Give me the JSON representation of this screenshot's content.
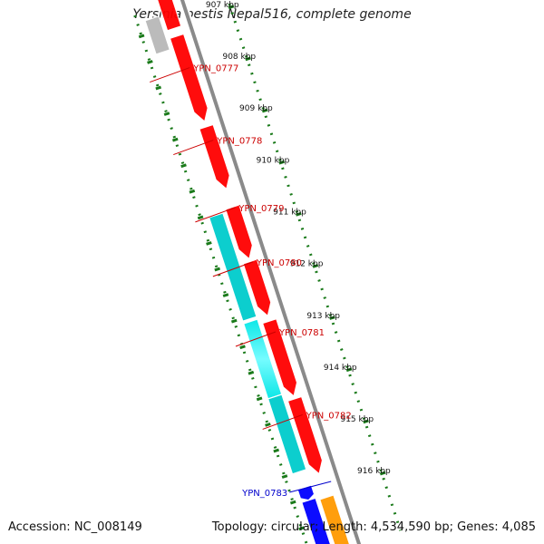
{
  "header": {
    "title": "Yersinia pestis Nepal516, complete genome"
  },
  "footer": {
    "accession": "Accession: NC_008149",
    "summary": "Topology: circular; Length: 4,534,590 bp; Genes: 4,085"
  },
  "colors": {
    "backbone": "#8a8a8a",
    "scale": "#1a7a1a",
    "gene_red": "#ff0000",
    "gene_cyan": "#00cccc",
    "gene_gray": "#b8b8b8",
    "gene_blue": "#0000ff",
    "gene_orange": "#ff9900",
    "label_red": "#cc0000",
    "label_blue": "#0000cc"
  },
  "scale": {
    "unit": "kbp",
    "start_kbp": 906.6,
    "end_kbp": 917.1,
    "ticks": [
      {
        "value": 907,
        "label": "907 kbp"
      },
      {
        "value": 908,
        "label": "908 kbp"
      },
      {
        "value": 909,
        "label": "909 kbp"
      },
      {
        "value": 910,
        "label": "910 kbp"
      },
      {
        "value": 911,
        "label": "911 kbp"
      },
      {
        "value": 912,
        "label": "912 kbp"
      },
      {
        "value": 913,
        "label": "913 kbp"
      },
      {
        "value": 914,
        "label": "914 kbp"
      },
      {
        "value": 915,
        "label": "915 kbp"
      },
      {
        "value": 916,
        "label": "916 kbp"
      }
    ]
  },
  "genes": [
    {
      "lane": "f1",
      "start": 906.45,
      "end": 907.05,
      "color": "gene_red",
      "arrow": false
    },
    {
      "lane": "f2",
      "start": 906.75,
      "end": 907.4,
      "color": "gene_gray",
      "arrow": false
    },
    {
      "lane": "f1",
      "start": 907.2,
      "end": 908.85,
      "color": "gene_red",
      "arrow": true
    },
    {
      "lane": "f1",
      "start": 908.95,
      "end": 910.15,
      "color": "gene_red",
      "arrow": true
    },
    {
      "lane": "f1",
      "start": 910.5,
      "end": 911.5,
      "color": "gene_red",
      "arrow": true
    },
    {
      "lane": "f2",
      "start": 910.55,
      "end": 912.55,
      "color": "gene_cyan",
      "arrow": false
    },
    {
      "lane": "f1",
      "start": 911.55,
      "end": 912.6,
      "color": "gene_red",
      "arrow": true
    },
    {
      "lane": "f2",
      "start": 912.6,
      "end": 914.05,
      "color": "gene_cyan",
      "arrow": false,
      "glow": true
    },
    {
      "lane": "f1",
      "start": 912.7,
      "end": 914.15,
      "color": "gene_red",
      "arrow": true
    },
    {
      "lane": "f2",
      "start": 914.05,
      "end": 915.5,
      "color": "gene_cyan",
      "arrow": false
    },
    {
      "lane": "f1",
      "start": 914.2,
      "end": 915.65,
      "color": "gene_red",
      "arrow": true
    },
    {
      "lane": "f2",
      "start": 915.8,
      "end": 916.05,
      "color": "gene_blue",
      "arrow": true
    },
    {
      "lane": "f1",
      "start": 916.1,
      "end": 917.2,
      "color": "gene_orange",
      "arrow": false
    },
    {
      "lane": "f2",
      "start": 916.05,
      "end": 917.2,
      "color": "gene_blue",
      "arrow": true
    }
  ],
  "labels": [
    {
      "text": "YPN_0777",
      "side": "right",
      "pos": 907.85,
      "color": "label_red"
    },
    {
      "text": "YPN_0778",
      "side": "right",
      "pos": 909.25,
      "color": "label_red"
    },
    {
      "text": "YPN_0779",
      "side": "right",
      "pos": 910.55,
      "color": "label_red"
    },
    {
      "text": "YPN_0780",
      "side": "right",
      "pos": 911.6,
      "color": "label_red"
    },
    {
      "text": "YPN_0781",
      "side": "right",
      "pos": 912.95,
      "color": "label_red"
    },
    {
      "text": "YPN_0782",
      "side": "right",
      "pos": 914.55,
      "color": "label_red"
    },
    {
      "text": "YPN_0783",
      "side": "left",
      "pos": 915.85,
      "color": "label_blue"
    }
  ]
}
